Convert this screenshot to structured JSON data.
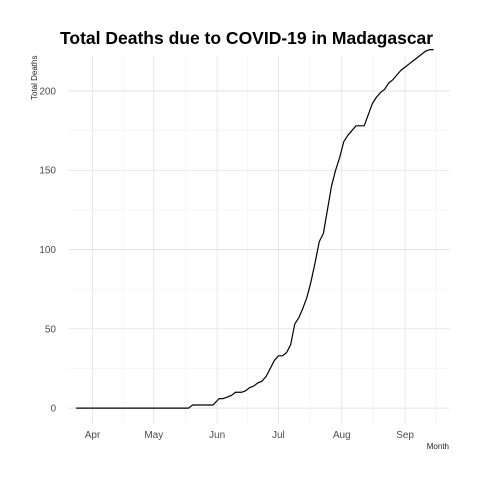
{
  "chart_data": {
    "type": "line",
    "title": "Total Deaths due to COVID-19 in Madagascar",
    "xlabel": "Month",
    "ylabel": "Total Deaths",
    "grid": true,
    "legend": "none",
    "line_color": "#000000",
    "x_ticks": [
      {
        "label": "Apr",
        "date": "2020-04-01"
      },
      {
        "label": "May",
        "date": "2020-05-01"
      },
      {
        "label": "Jun",
        "date": "2020-06-01"
      },
      {
        "label": "Jul",
        "date": "2020-07-01"
      },
      {
        "label": "Aug",
        "date": "2020-08-01"
      },
      {
        "label": "Sep",
        "date": "2020-09-01"
      }
    ],
    "y_ticks": [
      0,
      50,
      100,
      150,
      200
    ],
    "xlim": [
      "2020-03-20",
      "2020-09-23"
    ],
    "ylim": [
      -10,
      222
    ],
    "x": [
      "2020-03-24",
      "2020-05-01",
      "2020-05-18",
      "2020-05-19",
      "2020-05-20",
      "2020-05-25",
      "2020-05-29",
      "2020-05-30",
      "2020-06-02",
      "2020-06-04",
      "2020-06-06",
      "2020-06-08",
      "2020-06-10",
      "2020-06-13",
      "2020-06-15",
      "2020-06-17",
      "2020-06-19",
      "2020-06-21",
      "2020-06-23",
      "2020-06-25",
      "2020-06-27",
      "2020-06-29",
      "2020-07-01",
      "2020-07-03",
      "2020-07-05",
      "2020-07-07",
      "2020-07-09",
      "2020-07-11",
      "2020-07-13",
      "2020-07-15",
      "2020-07-16",
      "2020-07-17",
      "2020-07-19",
      "2020-07-21",
      "2020-07-23",
      "2020-07-25",
      "2020-07-27",
      "2020-07-29",
      "2020-07-31",
      "2020-08-02",
      "2020-08-04",
      "2020-08-06",
      "2020-08-08",
      "2020-08-10",
      "2020-08-12",
      "2020-08-14",
      "2020-08-16",
      "2020-08-18",
      "2020-08-20",
      "2020-08-22",
      "2020-08-24",
      "2020-08-26",
      "2020-08-28",
      "2020-08-30",
      "2020-09-01",
      "2020-09-03",
      "2020-09-05",
      "2020-09-07",
      "2020-09-09",
      "2020-09-11",
      "2020-09-13",
      "2020-09-15"
    ],
    "y": [
      0,
      0,
      0,
      1,
      2,
      2,
      2,
      2,
      6,
      6,
      7,
      8,
      10,
      10,
      11,
      13,
      14,
      16,
      17,
      20,
      25,
      30,
      33,
      33,
      35,
      40,
      53,
      57,
      63,
      70,
      75,
      80,
      92,
      105,
      110,
      125,
      140,
      150,
      158,
      168,
      172,
      175,
      178,
      178,
      178,
      185,
      192,
      196,
      199,
      201,
      205,
      207,
      210,
      213,
      215,
      217,
      219,
      221,
      223,
      225,
      226,
      226
    ]
  }
}
